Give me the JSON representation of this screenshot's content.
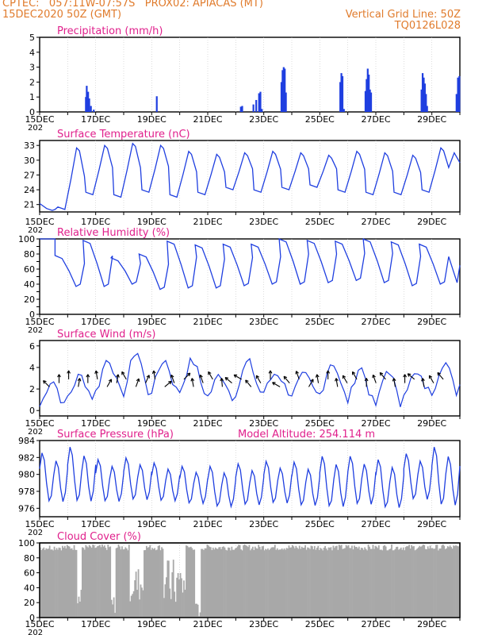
{
  "header": {
    "line1_left": "CPTEC:   057:11W-07:57S   PROX02: APIACAS (MT)",
    "line2_left": "15DEC2020 50Z (GMT)",
    "line2_right": "Vertical Grid Line: 50Z",
    "line3_right": "TQ0126L028"
  },
  "colors": {
    "header": "#e07b2c",
    "panel_title": "#e0208c",
    "series": "#1f3fe0",
    "cloud_fill": "#a8a8a8",
    "axis": "#000000"
  },
  "x_axis": {
    "tick_labels": [
      "15DEC",
      "17DEC",
      "19DEC",
      "21DEC",
      "23DEC",
      "25DEC",
      "27DEC",
      "29DEC"
    ],
    "first_label_suffix": "202",
    "days": 15
  },
  "chart_data": [
    {
      "type": "bar",
      "title": "Precipitation (mm/h)",
      "ylim": [
        0,
        5
      ],
      "yticks": [
        0,
        1,
        2,
        3,
        4,
        5
      ],
      "grid": false,
      "events": [
        {
          "day": 1.62,
          "value": 1.0
        },
        {
          "day": 1.65,
          "value": 1.75
        },
        {
          "day": 1.7,
          "value": 1.35
        },
        {
          "day": 1.74,
          "value": 0.9
        },
        {
          "day": 1.8,
          "value": 0.4
        },
        {
          "day": 1.9,
          "value": 0.15
        },
        {
          "day": 4.15,
          "value": 1.05
        },
        {
          "day": 7.15,
          "value": 0.35
        },
        {
          "day": 7.2,
          "value": 0.4
        },
        {
          "day": 7.6,
          "value": 0.5
        },
        {
          "day": 7.7,
          "value": 0.8
        },
        {
          "day": 7.8,
          "value": 1.25
        },
        {
          "day": 7.85,
          "value": 1.35
        },
        {
          "day": 7.9,
          "value": 0.2
        },
        {
          "day": 8.6,
          "value": 2.0
        },
        {
          "day": 8.64,
          "value": 2.8
        },
        {
          "day": 8.68,
          "value": 3.0
        },
        {
          "day": 8.72,
          "value": 2.9
        },
        {
          "day": 8.76,
          "value": 1.3
        },
        {
          "day": 10.7,
          "value": 2.0
        },
        {
          "day": 10.74,
          "value": 2.6
        },
        {
          "day": 10.78,
          "value": 2.4
        },
        {
          "day": 10.83,
          "value": 0.2
        },
        {
          "day": 11.6,
          "value": 1.4
        },
        {
          "day": 11.64,
          "value": 2.2
        },
        {
          "day": 11.68,
          "value": 2.9
        },
        {
          "day": 11.72,
          "value": 2.5
        },
        {
          "day": 11.76,
          "value": 1.5
        },
        {
          "day": 11.8,
          "value": 1.3
        },
        {
          "day": 13.6,
          "value": 1.5
        },
        {
          "day": 13.64,
          "value": 2.6
        },
        {
          "day": 13.68,
          "value": 2.3
        },
        {
          "day": 13.72,
          "value": 1.9
        },
        {
          "day": 13.76,
          "value": 1.2
        },
        {
          "day": 13.8,
          "value": 0.4
        },
        {
          "day": 14.85,
          "value": 1.2
        },
        {
          "day": 14.9,
          "value": 2.3
        },
        {
          "day": 14.95,
          "value": 2.4
        }
      ]
    },
    {
      "type": "line",
      "title": "Surface Temperature (nC)",
      "ylim": [
        19.5,
        34
      ],
      "yticks": [
        21,
        24,
        27,
        30,
        33
      ],
      "grid": false,
      "peaks": [
        19.8,
        32.5,
        33.0,
        33.4,
        33.0,
        31.8,
        31.2,
        31.5,
        31.8,
        31.5,
        31.0,
        31.8,
        31.5,
        31.0,
        32.5
      ],
      "troughs": [
        21.0,
        20.0,
        23.0,
        22.5,
        23.5,
        22.5,
        23.0,
        24.0,
        23.5,
        24.0,
        24.5,
        23.5,
        23.0,
        23.0,
        23.5,
        22.5,
        29.5
      ]
    },
    {
      "type": "line",
      "title": "Relative Humidity (%)",
      "ylim": [
        0,
        100
      ],
      "yticks": [
        0,
        10,
        20,
        30,
        40,
        50,
        60,
        70,
        80,
        90,
        100
      ],
      "tick_labels": [
        "0",
        "",
        "20",
        "",
        "40",
        "",
        "60",
        "",
        "80",
        "",
        "100"
      ],
      "grid": false,
      "peaks": [
        100,
        78,
        98,
        75,
        80,
        97,
        92,
        93,
        93,
        100,
        98,
        97,
        100,
        96,
        93,
        65
      ],
      "troughs": [
        100,
        37,
        37,
        40,
        33,
        35,
        35,
        38,
        40,
        40,
        42,
        45,
        42,
        38,
        40,
        36,
        40
      ]
    },
    {
      "type": "line",
      "title": "Surface Wind (m/s)",
      "ylim": [
        -0.5,
        6.5
      ],
      "yticks": [
        0,
        2,
        4,
        6
      ],
      "grid": false,
      "peaks": [
        2.8,
        3.2,
        4.8,
        5.5,
        4.7,
        4.6,
        3.3,
        4.5,
        3.5,
        3.2,
        4.5,
        4.0,
        3.8,
        3.3,
        4.5,
        2.6
      ],
      "troughs": [
        0.3,
        1.2,
        1.6,
        1.5,
        1.8,
        1.7,
        1.2,
        1.6,
        1.7,
        1.5,
        1.4,
        0.8,
        0.4,
        1.8,
        1.6,
        1.8,
        2.3
      ],
      "arrow_angles_deg": [
        135,
        90,
        90,
        80,
        90,
        100,
        60,
        80,
        120,
        70,
        65,
        100,
        40,
        110,
        45,
        100,
        110,
        120,
        95,
        140,
        150,
        130,
        120,
        90,
        150,
        130,
        110,
        60,
        100,
        90,
        100,
        120,
        120,
        90,
        110,
        130,
        100,
        90,
        140,
        100,
        120,
        130
      ]
    },
    {
      "type": "line",
      "title": "Surface Pressure (hPa)",
      "annotation": "Model Altitude: 254.114  m",
      "ylim": [
        975,
        984
      ],
      "yticks": [
        976,
        978,
        980,
        982,
        984
      ],
      "grid": false,
      "maxima": [
        982.6,
        983.3,
        981.8,
        982.0,
        981.4,
        981.0,
        981.0,
        981.3,
        981.6,
        981.5,
        982.2,
        982.2,
        981.8,
        982.5,
        983.3
      ],
      "minima": [
        976.3,
        976.3,
        976.4,
        976.6,
        976.5,
        976.2,
        975.8,
        976.0,
        976.2,
        975.9,
        975.7,
        976.0,
        975.6,
        976.6,
        975.8
      ]
    },
    {
      "type": "area",
      "title": "Cloud Cover (%)",
      "ylim": [
        0,
        100
      ],
      "yticks": [
        0,
        20,
        40,
        60,
        80,
        100
      ],
      "grid": false,
      "typical_value": 94
    }
  ]
}
